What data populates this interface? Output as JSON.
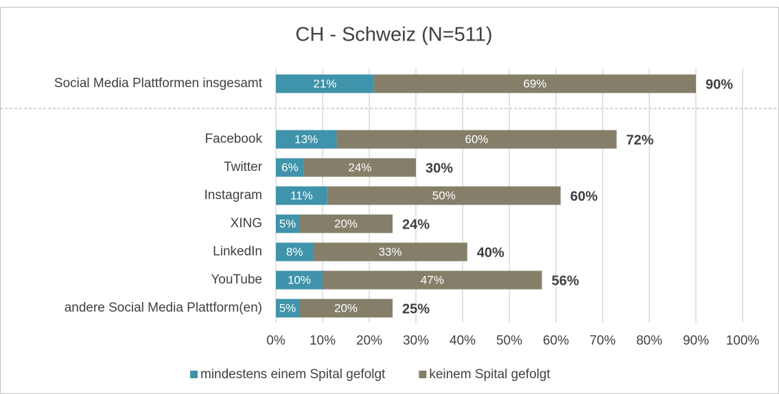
{
  "chart_data": {
    "type": "stacked_barh",
    "title": "CH - Schweiz (N=511)",
    "categories": [
      "Social Media Plattformen insgesamt",
      "Facebook",
      "Twitter",
      "Instagram",
      "XING",
      "LinkedIn",
      "YouTube",
      "andere Social Media Plattform(en)"
    ],
    "series": [
      {
        "name": "mindestens einem Spital gefolgt",
        "color": "#3f93aa",
        "values": [
          21,
          13,
          6,
          11,
          5,
          8,
          10,
          5
        ],
        "value_labels": [
          "21%",
          "13%",
          "6%",
          "11%",
          "5%",
          "8%",
          "10%",
          "5%"
        ]
      },
      {
        "name": "keinem Spital gefolgt",
        "color": "#857f6a",
        "values": [
          69,
          60,
          24,
          50,
          20,
          33,
          47,
          20
        ],
        "value_labels": [
          "69%",
          "60%",
          "24%",
          "50%",
          "20%",
          "33%",
          "47%",
          "20%"
        ]
      }
    ],
    "totals": [
      90,
      72,
      30,
      60,
      24,
      40,
      56,
      25
    ],
    "total_labels": [
      "90%",
      "72%",
      "30%",
      "60%",
      "24%",
      "40%",
      "56%",
      "25%"
    ],
    "xlim": [
      0,
      100
    ],
    "xticks": [
      {
        "value": 0,
        "label": "0%"
      },
      {
        "value": 10,
        "label": "10%"
      },
      {
        "value": 20,
        "label": "20%"
      },
      {
        "value": 30,
        "label": "30%"
      },
      {
        "value": 40,
        "label": "40%"
      },
      {
        "value": 50,
        "label": "50%"
      },
      {
        "value": 60,
        "label": "60%"
      },
      {
        "value": 70,
        "label": "70%"
      },
      {
        "value": 80,
        "label": "80%"
      },
      {
        "value": 90,
        "label": "90%"
      },
      {
        "value": 100,
        "label": "100%"
      }
    ],
    "grid": true,
    "legend": "bottom"
  }
}
